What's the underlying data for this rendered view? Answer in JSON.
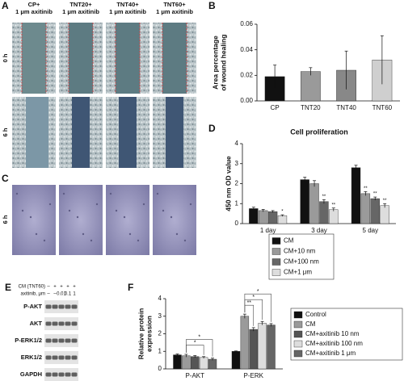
{
  "panel_labels": [
    "A",
    "B",
    "C",
    "D",
    "E",
    "F"
  ],
  "panel_a": {
    "columns": [
      [
        "CP+",
        "1 μm axitinib"
      ],
      [
        "TNT20+",
        "1 μm axitinib"
      ],
      [
        "TNT40+",
        "1 μm axitinib"
      ],
      [
        "TNT60+",
        "1 μm axitinib"
      ]
    ],
    "rows": [
      "0 h",
      "6 h"
    ]
  },
  "panel_c": {
    "rows": [
      "6 h"
    ]
  },
  "panel_e": {
    "header": [
      {
        "label": "CM (TNT60)",
        "cells": [
          "–",
          "+",
          "+",
          "+",
          "+"
        ]
      },
      {
        "label": "axitinib, μm",
        "cells": [
          "–",
          "–",
          "0.01",
          "0.1",
          "1"
        ]
      }
    ],
    "bands": [
      "P-AKT",
      "AKT",
      "P-ERK1/2",
      "ERK1/2",
      "GAPDH"
    ]
  },
  "chart_data": [
    {
      "type": "bar",
      "ylabel": [
        "Area percentage",
        "of wound healing"
      ],
      "categories": [
        "CP",
        "TNT20",
        "TNT40",
        "TNT60"
      ],
      "values": [
        0.019,
        0.023,
        0.024,
        0.032
      ],
      "errors": [
        0.009,
        0.003,
        0.015,
        0.019
      ],
      "colors": [
        "#111111",
        "#9a9a9a",
        "#888888",
        "#cfcfcf"
      ],
      "ylim": [
        0,
        0.06
      ],
      "yticks": [
        {
          "value": 0,
          "label": "0.00"
        },
        0.02,
        0.04,
        0.06
      ]
    },
    {
      "type": "bar",
      "title": "Cell proliferation",
      "ylabel": [
        "450 nm OD value"
      ],
      "categories": [
        "1 day",
        "3 day",
        "5 day"
      ],
      "series": [
        {
          "name": "CM",
          "color": "#111111",
          "values": [
            0.75,
            2.2,
            2.8
          ],
          "errors": [
            0.07,
            0.12,
            0.12
          ],
          "significance": [
            null,
            null,
            null
          ]
        },
        {
          "name": "CM+10 nm",
          "color": "#9a9a9a",
          "values": [
            0.65,
            2.0,
            1.5
          ],
          "errors": [
            0.06,
            0.15,
            0.1
          ],
          "significance": [
            null,
            null,
            "**"
          ]
        },
        {
          "name": "CM+100 nm",
          "color": "#666666",
          "values": [
            0.6,
            1.1,
            1.25
          ],
          "errors": [
            0.05,
            0.1,
            0.08
          ],
          "significance": [
            null,
            "**",
            "**"
          ]
        },
        {
          "name": "CM+1 μm",
          "color": "#dddddd",
          "values": [
            0.4,
            0.7,
            0.9
          ],
          "errors": [
            0.04,
            0.08,
            0.1
          ],
          "significance": [
            "*",
            "**",
            "**"
          ]
        }
      ],
      "ylim": [
        0,
        4
      ],
      "yticks": [
        0,
        1,
        2,
        3,
        4
      ]
    },
    {
      "type": "bar",
      "ylabel": [
        "Relative protein",
        "expression"
      ],
      "categories": [
        "P-AKT",
        "P-ERK"
      ],
      "series": [
        {
          "name": "Control",
          "color": "#111111",
          "values": [
            0.8,
            1.0
          ],
          "errors": [
            0.05,
            0.02
          ]
        },
        {
          "name": "CM",
          "color": "#9a9a9a",
          "values": [
            0.75,
            3.0
          ],
          "errors": [
            0.08,
            0.12
          ]
        },
        {
          "name": "CM+axitinib 10 nm",
          "color": "#555555",
          "values": [
            0.7,
            2.25
          ],
          "errors": [
            0.06,
            0.1
          ]
        },
        {
          "name": "CM+axitinib 100 nm",
          "color": "#dddddd",
          "values": [
            0.65,
            2.6
          ],
          "errors": [
            0.05,
            0.1
          ]
        },
        {
          "name": "CM+axitinib 1 μm",
          "color": "#666666",
          "values": [
            0.55,
            2.5
          ],
          "errors": [
            0.06,
            0.08
          ]
        }
      ],
      "comparisons": [
        {
          "category": "P-AKT",
          "series": [
            "CM",
            "CM+axitinib 100 nm"
          ],
          "label": "*"
        },
        {
          "category": "P-AKT",
          "series": [
            "CM",
            "CM+axitinib 1 μm"
          ],
          "label": "*"
        },
        {
          "category": "P-ERK",
          "series": [
            "CM",
            "CM+axitinib 10 nm"
          ],
          "label": "**"
        },
        {
          "category": "P-ERK",
          "series": [
            "CM",
            "CM+axitinib 100 nm"
          ],
          "label": "*"
        },
        {
          "category": "P-ERK",
          "series": [
            "CM",
            "CM+axitinib 1 μm"
          ],
          "label": "*"
        }
      ],
      "ylim": [
        0,
        4
      ],
      "yticks": [
        0,
        1,
        2,
        3,
        4
      ]
    }
  ]
}
